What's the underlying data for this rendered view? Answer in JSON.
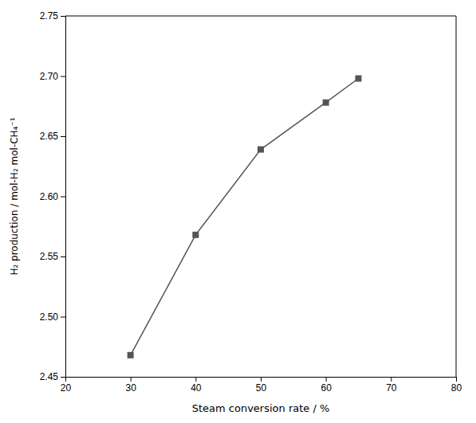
{
  "chart_data": {
    "type": "line",
    "x": [
      30,
      40,
      50,
      60,
      65
    ],
    "values": [
      2.468,
      2.568,
      2.639,
      2.678,
      2.698
    ],
    "color": "#555555",
    "marker": "square",
    "xlim": [
      20,
      80
    ],
    "ylim": [
      2.45,
      2.75
    ],
    "xticks": [
      20,
      30,
      40,
      50,
      60,
      70,
      80
    ],
    "yticks": [
      2.45,
      {
        "value": 2.5,
        "label": "2.50"
      },
      2.55,
      {
        "value": 2.6,
        "label": "2.60"
      },
      2.65,
      {
        "value": 2.7,
        "label": "2.70"
      },
      2.75
    ],
    "xlabel": "Steam conversion rate / %",
    "ylabel": "H₂ production / mol-H₂ mol-CH₄⁻¹",
    "grid": false
  }
}
